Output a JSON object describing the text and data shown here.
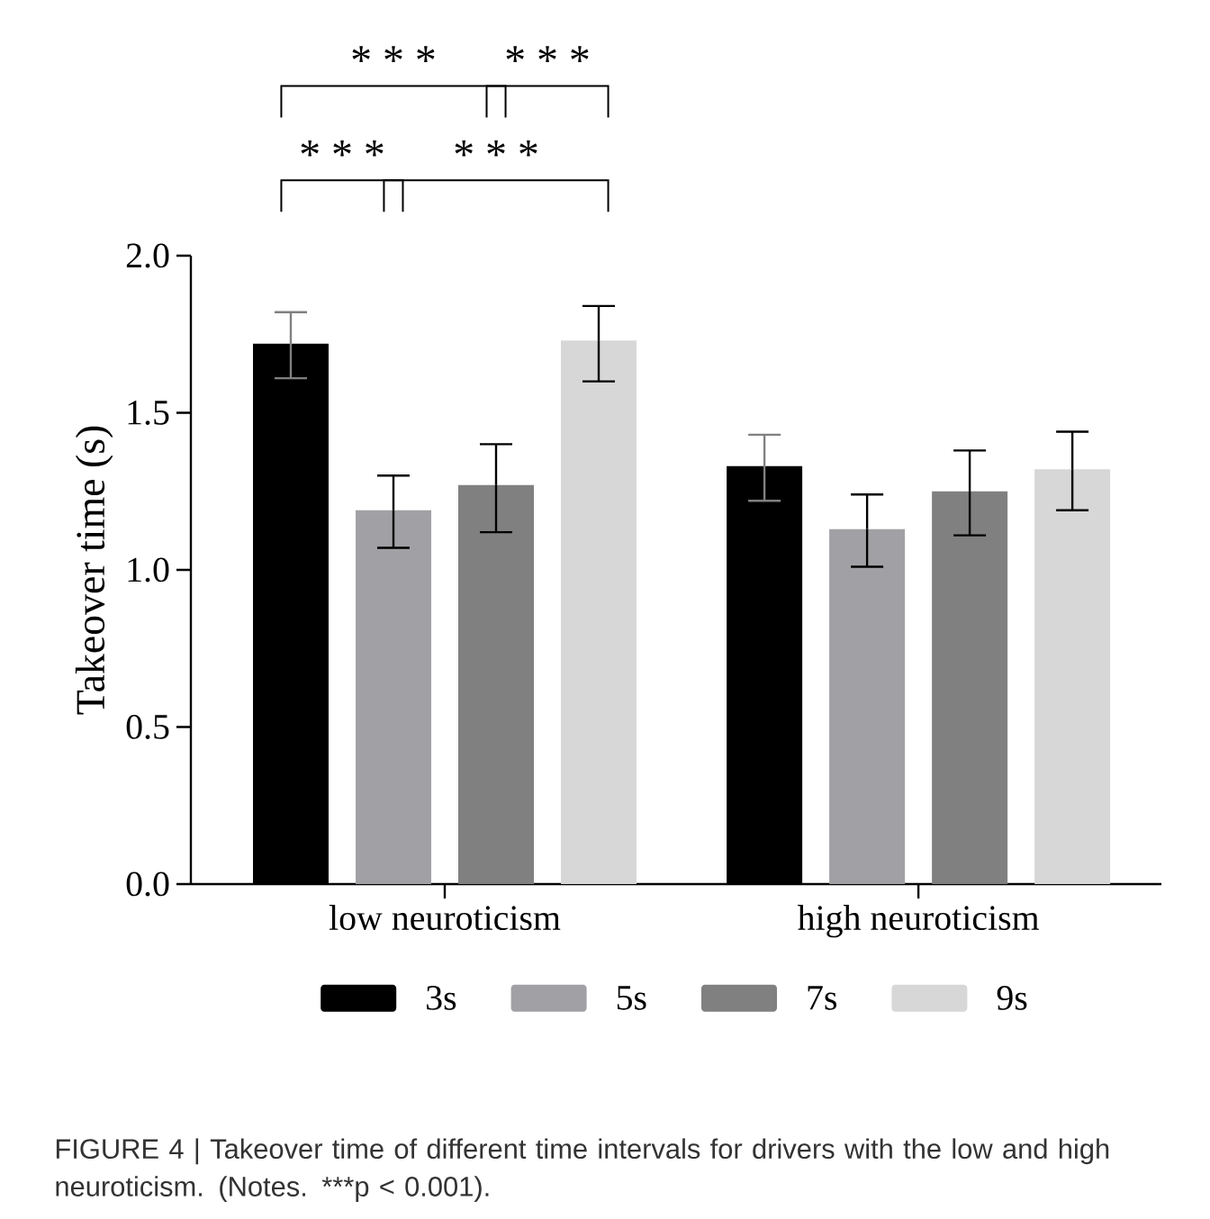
{
  "chart_data": {
    "type": "bar",
    "ylabel": "Takeover time (s)",
    "categories": [
      "low neuroticism",
      "high neuroticism"
    ],
    "series": [
      {
        "name": "3s",
        "color": "#000000",
        "values": [
          1.72,
          1.33
        ],
        "errors": [
          [
            1.61,
            1.82
          ],
          [
            1.22,
            1.43
          ]
        ]
      },
      {
        "name": "5s",
        "color": "#a1a1a5",
        "values": [
          1.19,
          1.13
        ],
        "errors": [
          [
            1.07,
            1.3
          ],
          [
            1.01,
            1.24
          ]
        ]
      },
      {
        "name": "7s",
        "color": "#808080",
        "values": [
          1.27,
          1.25
        ],
        "errors": [
          [
            1.12,
            1.4
          ],
          [
            1.11,
            1.38
          ]
        ]
      },
      {
        "name": "9s",
        "color": "#d7d7d7",
        "values": [
          1.73,
          1.32
        ],
        "errors": [
          [
            1.6,
            1.84
          ],
          [
            1.19,
            1.44
          ]
        ]
      }
    ],
    "ylim": [
      0,
      2.0
    ],
    "yticks": [
      {
        "value": 0,
        "label": "0.0"
      },
      {
        "value": 0.5,
        "label": "0.5"
      },
      {
        "value": 1.0,
        "label": "1.0"
      },
      {
        "value": 1.5,
        "label": "1.5"
      },
      {
        "value": 2.0,
        "label": "2.0"
      }
    ],
    "legend": "bottom",
    "annotations": [
      "* * *",
      "* * *",
      "* * *",
      "* * *",
      "FIGURE 4 | Takeover time of different time intervals for drivers with the low and high neuroticism. (Notes. ***p < 0.001)."
    ]
  }
}
